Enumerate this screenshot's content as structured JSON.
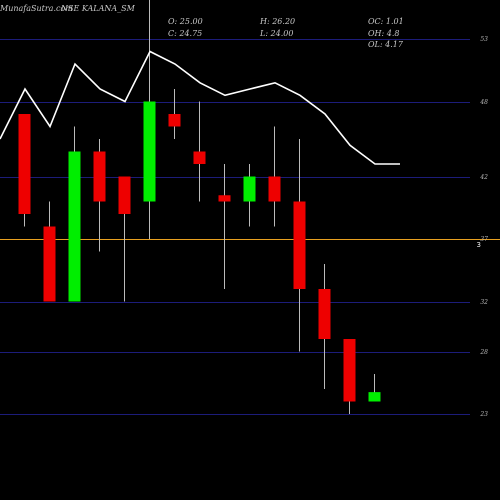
{
  "header": {
    "watermark": "MunafaSutra.com",
    "title": "NSE KALANA_SM",
    "open": "O: 25.00",
    "close": "C: 24.75",
    "high": "H: 26.20",
    "low": "L: 24.00",
    "oc": "OC: 1.01",
    "oh": "OH: 4.8",
    "ol": "OL: 4.17"
  },
  "colors": {
    "background": "#000000",
    "up": "#00ee00",
    "down": "#ee0000",
    "grid": "#1c1c7a",
    "reference": "#e8a020",
    "ma": "#ffffff",
    "wick": "#bbbbbb"
  },
  "chart_data": {
    "type": "candlestick",
    "y_ticks": [
      53,
      48,
      42,
      37,
      32,
      28,
      23
    ],
    "ylim": [
      19.0,
      55.0
    ],
    "reference_line": 37,
    "reference_badge": "3",
    "candles": [
      {
        "open": 47,
        "high": 47,
        "low": 38,
        "close": 39
      },
      {
        "open": 38,
        "high": 40,
        "low": 32,
        "close": 32
      },
      {
        "open": 32,
        "high": 46,
        "low": 32,
        "close": 44
      },
      {
        "open": 44,
        "high": 45,
        "low": 36,
        "close": 40
      },
      {
        "open": 42,
        "high": 42,
        "low": 32,
        "close": 39
      },
      {
        "open": 40,
        "high": 58,
        "low": 37,
        "close": 48
      },
      {
        "open": 47,
        "high": 49,
        "low": 45,
        "close": 46
      },
      {
        "open": 44,
        "high": 48,
        "low": 40,
        "close": 43
      },
      {
        "open": 40.5,
        "high": 43,
        "low": 33,
        "close": 40
      },
      {
        "open": 40,
        "high": 43,
        "low": 38,
        "close": 42
      },
      {
        "open": 42,
        "high": 46,
        "low": 38,
        "close": 40
      },
      {
        "open": 40,
        "high": 45,
        "low": 28,
        "close": 33
      },
      {
        "open": 33,
        "high": 35,
        "low": 25,
        "close": 29
      },
      {
        "open": 29,
        "high": 29,
        "low": 23,
        "close": 24
      },
      {
        "open": 24,
        "high": 26.2,
        "low": 24,
        "close": 24.75
      }
    ],
    "moving_average": [
      45,
      49,
      46,
      51,
      49,
      48,
      52,
      51,
      49.5,
      48.5,
      49,
      49.5,
      48.5,
      47,
      44.5,
      43,
      43
    ]
  }
}
